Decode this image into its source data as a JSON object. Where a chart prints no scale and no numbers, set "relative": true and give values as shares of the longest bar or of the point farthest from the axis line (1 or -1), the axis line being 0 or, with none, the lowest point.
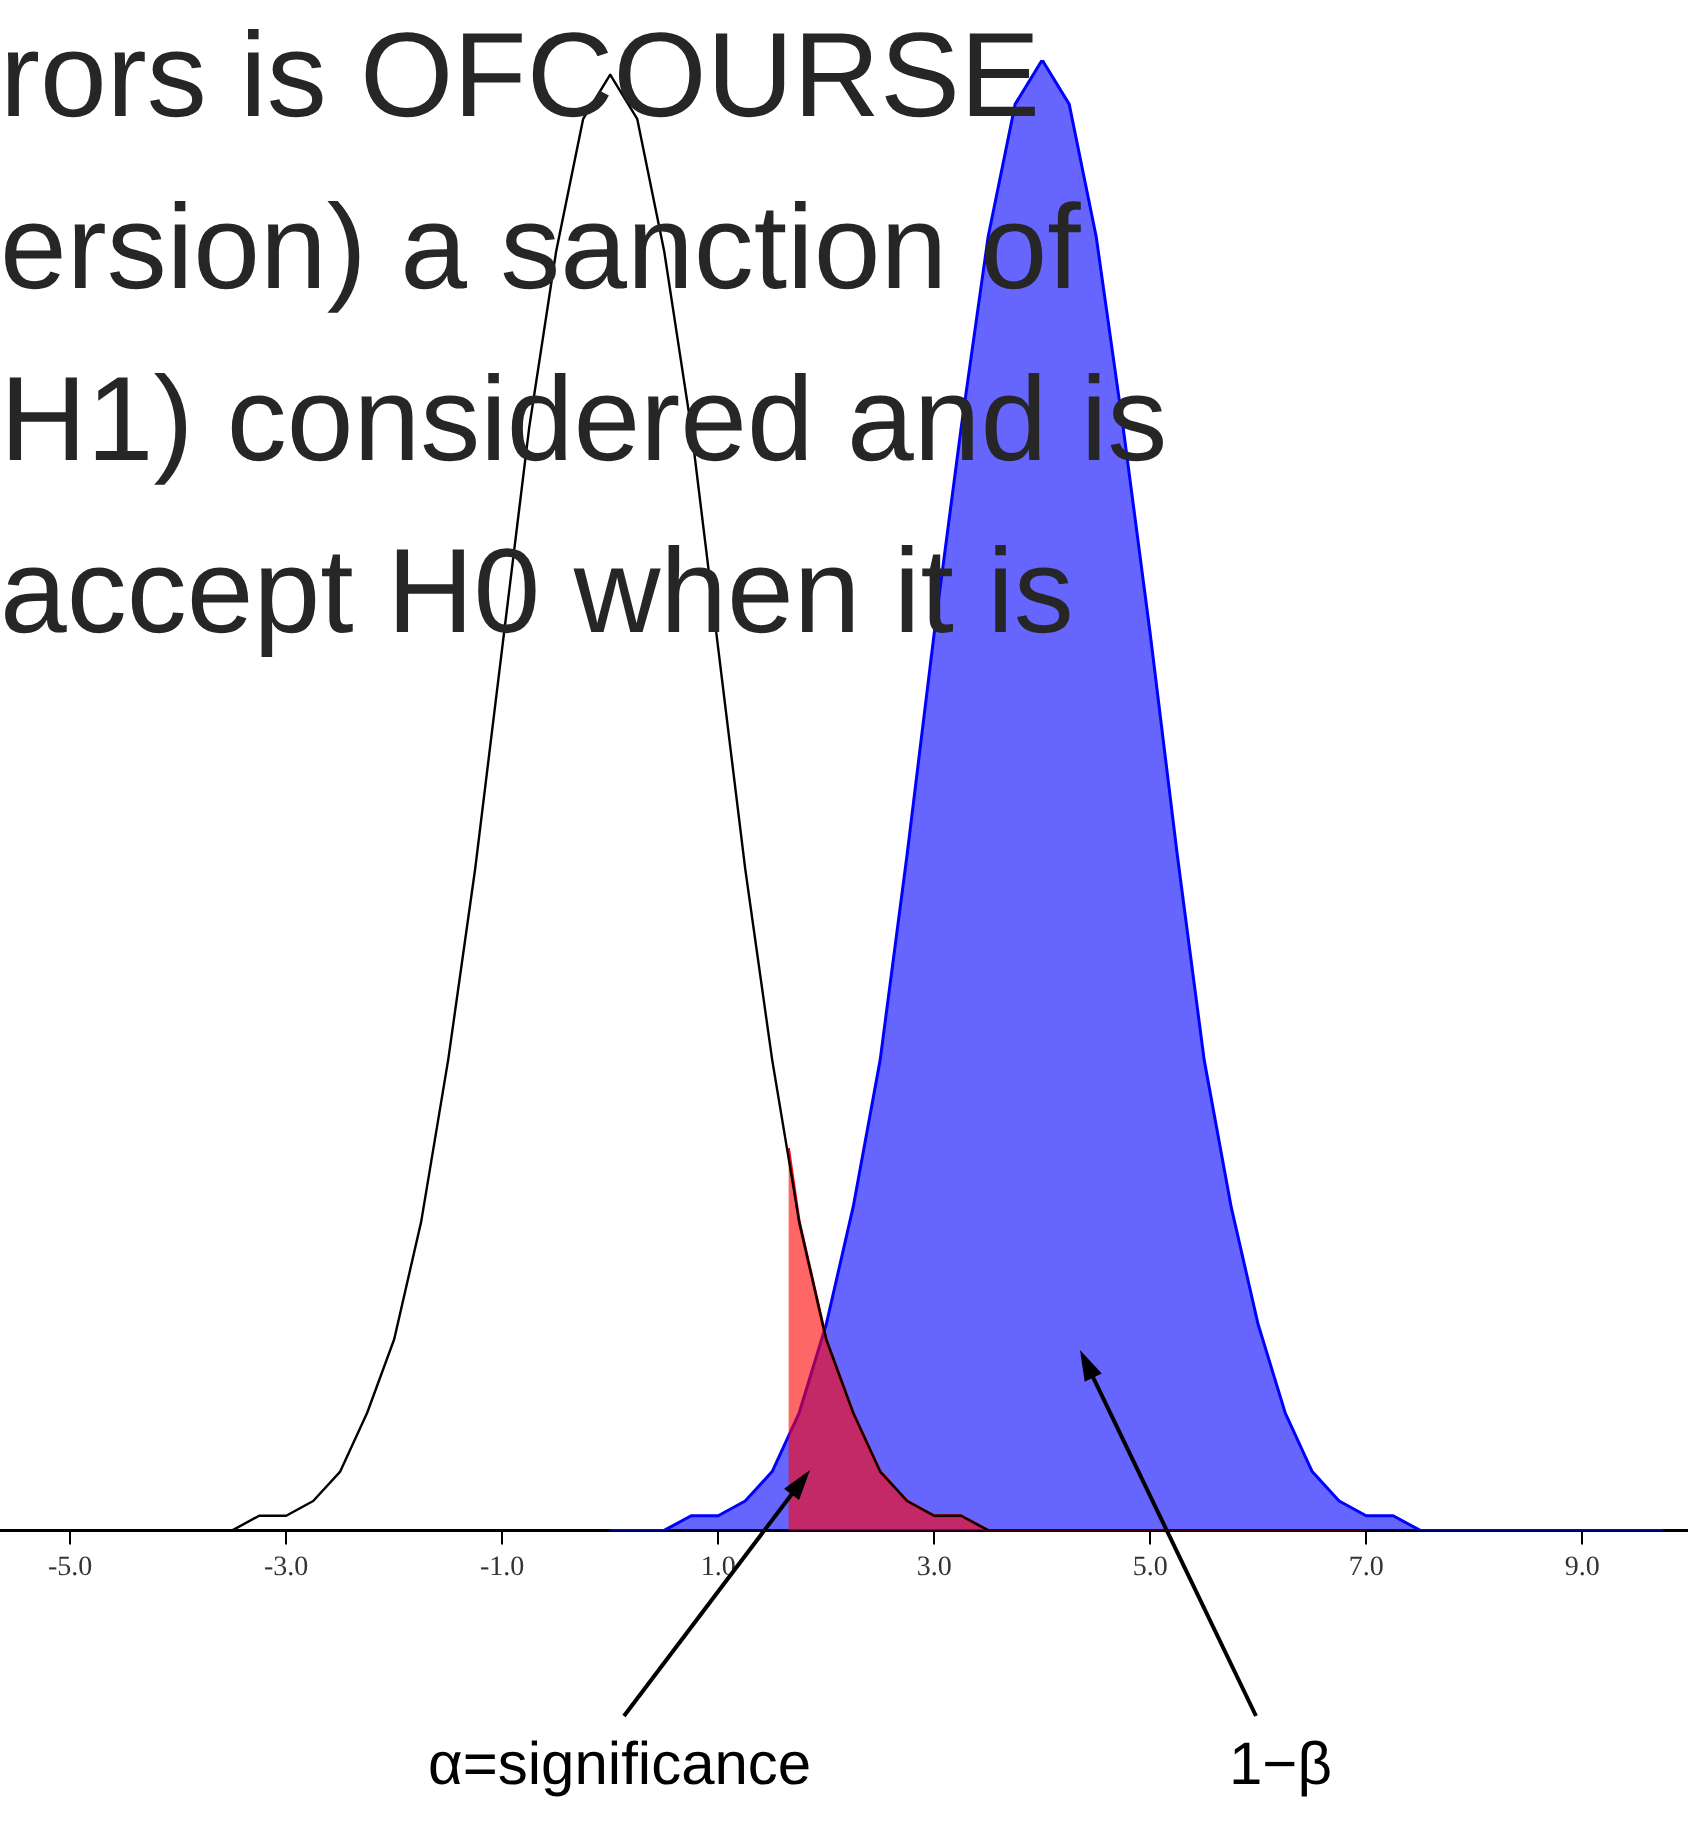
{
  "chart_data": {
    "type": "area",
    "relative": true,
    "legend": false,
    "grid": false,
    "marker": "none",
    "xlim": [
      -5.65,
      9.98
    ],
    "xticks": [
      {
        "value": -5,
        "label": "-5.0"
      },
      {
        "value": -3,
        "label": "-3.0"
      },
      {
        "value": -1,
        "label": "-1.0"
      },
      {
        "value": 1,
        "label": "1.0"
      },
      {
        "value": 3,
        "label": "3.0"
      },
      {
        "value": 5,
        "label": "5.0"
      },
      {
        "value": 7,
        "label": "7.0"
      },
      {
        "value": 9,
        "label": "9.0"
      }
    ],
    "series": [
      {
        "type": "area",
        "color": "#0000ff",
        "x": [
          0,
          0.25,
          0.5,
          0.75,
          1,
          1.25,
          1.5,
          1.75,
          2,
          2.25,
          2.5,
          2.75,
          3,
          3.25,
          3.5,
          3.75,
          4,
          4.25,
          4.5,
          4.75,
          5,
          5.25,
          5.5,
          5.75,
          6,
          6.25,
          6.5,
          6.75,
          7,
          7.25,
          7.5,
          7.75,
          8,
          8.25,
          8.5,
          8.75,
          9,
          9.25,
          9.5,
          9.75
        ],
        "values": [
          0,
          0,
          0,
          0.01,
          0.01,
          0.02,
          0.04,
          0.08,
          0.14,
          0.22,
          0.32,
          0.46,
          0.61,
          0.75,
          0.88,
          0.97,
          1,
          0.97,
          0.88,
          0.75,
          0.61,
          0.46,
          0.32,
          0.22,
          0.14,
          0.08,
          0.04,
          0.02,
          0.01,
          0.01,
          0,
          0,
          0,
          0,
          0,
          0,
          0,
          0,
          0,
          0
        ]
      },
      {
        "type": "area",
        "color": "#ff0000",
        "x": [
          1.65,
          1.75,
          2,
          2.25,
          2.5,
          2.75,
          3,
          3.25,
          3.5,
          4,
          5,
          6,
          7
        ],
        "values": [
          0.26,
          0.21,
          0.13,
          0.08,
          0.04,
          0.02,
          0.01,
          0.01,
          0,
          0,
          0,
          0,
          0
        ]
      },
      {
        "type": "line",
        "color": "#000000",
        "x": [
          -4,
          -3.75,
          -3.5,
          -3.25,
          -3,
          -2.75,
          -2.5,
          -2.25,
          -2,
          -1.75,
          -1.5,
          -1.25,
          -1,
          -0.75,
          -0.5,
          -0.25,
          0,
          0.25,
          0.5,
          0.75,
          1,
          1.25,
          1.5,
          1.75,
          2,
          2.25,
          2.5,
          2.75,
          3,
          3.25,
          3.5,
          3.75,
          4,
          4.5,
          5,
          5.5,
          6,
          6.5,
          7
        ],
        "values": [
          0,
          0,
          0,
          0.01,
          0.01,
          0.02,
          0.04,
          0.08,
          0.13,
          0.21,
          0.32,
          0.45,
          0.6,
          0.75,
          0.87,
          0.96,
          0.99,
          0.96,
          0.87,
          0.75,
          0.6,
          0.45,
          0.32,
          0.21,
          0.13,
          0.08,
          0.04,
          0.02,
          0.01,
          0.01,
          0,
          0,
          0,
          0,
          0,
          0,
          0,
          0,
          0
        ]
      }
    ],
    "annotations": [
      "rors is OFCOURSE",
      "ersion) a sanction of",
      "H1) considered and is",
      "accept H0 when it is",
      "α=significance",
      "1−β"
    ]
  }
}
